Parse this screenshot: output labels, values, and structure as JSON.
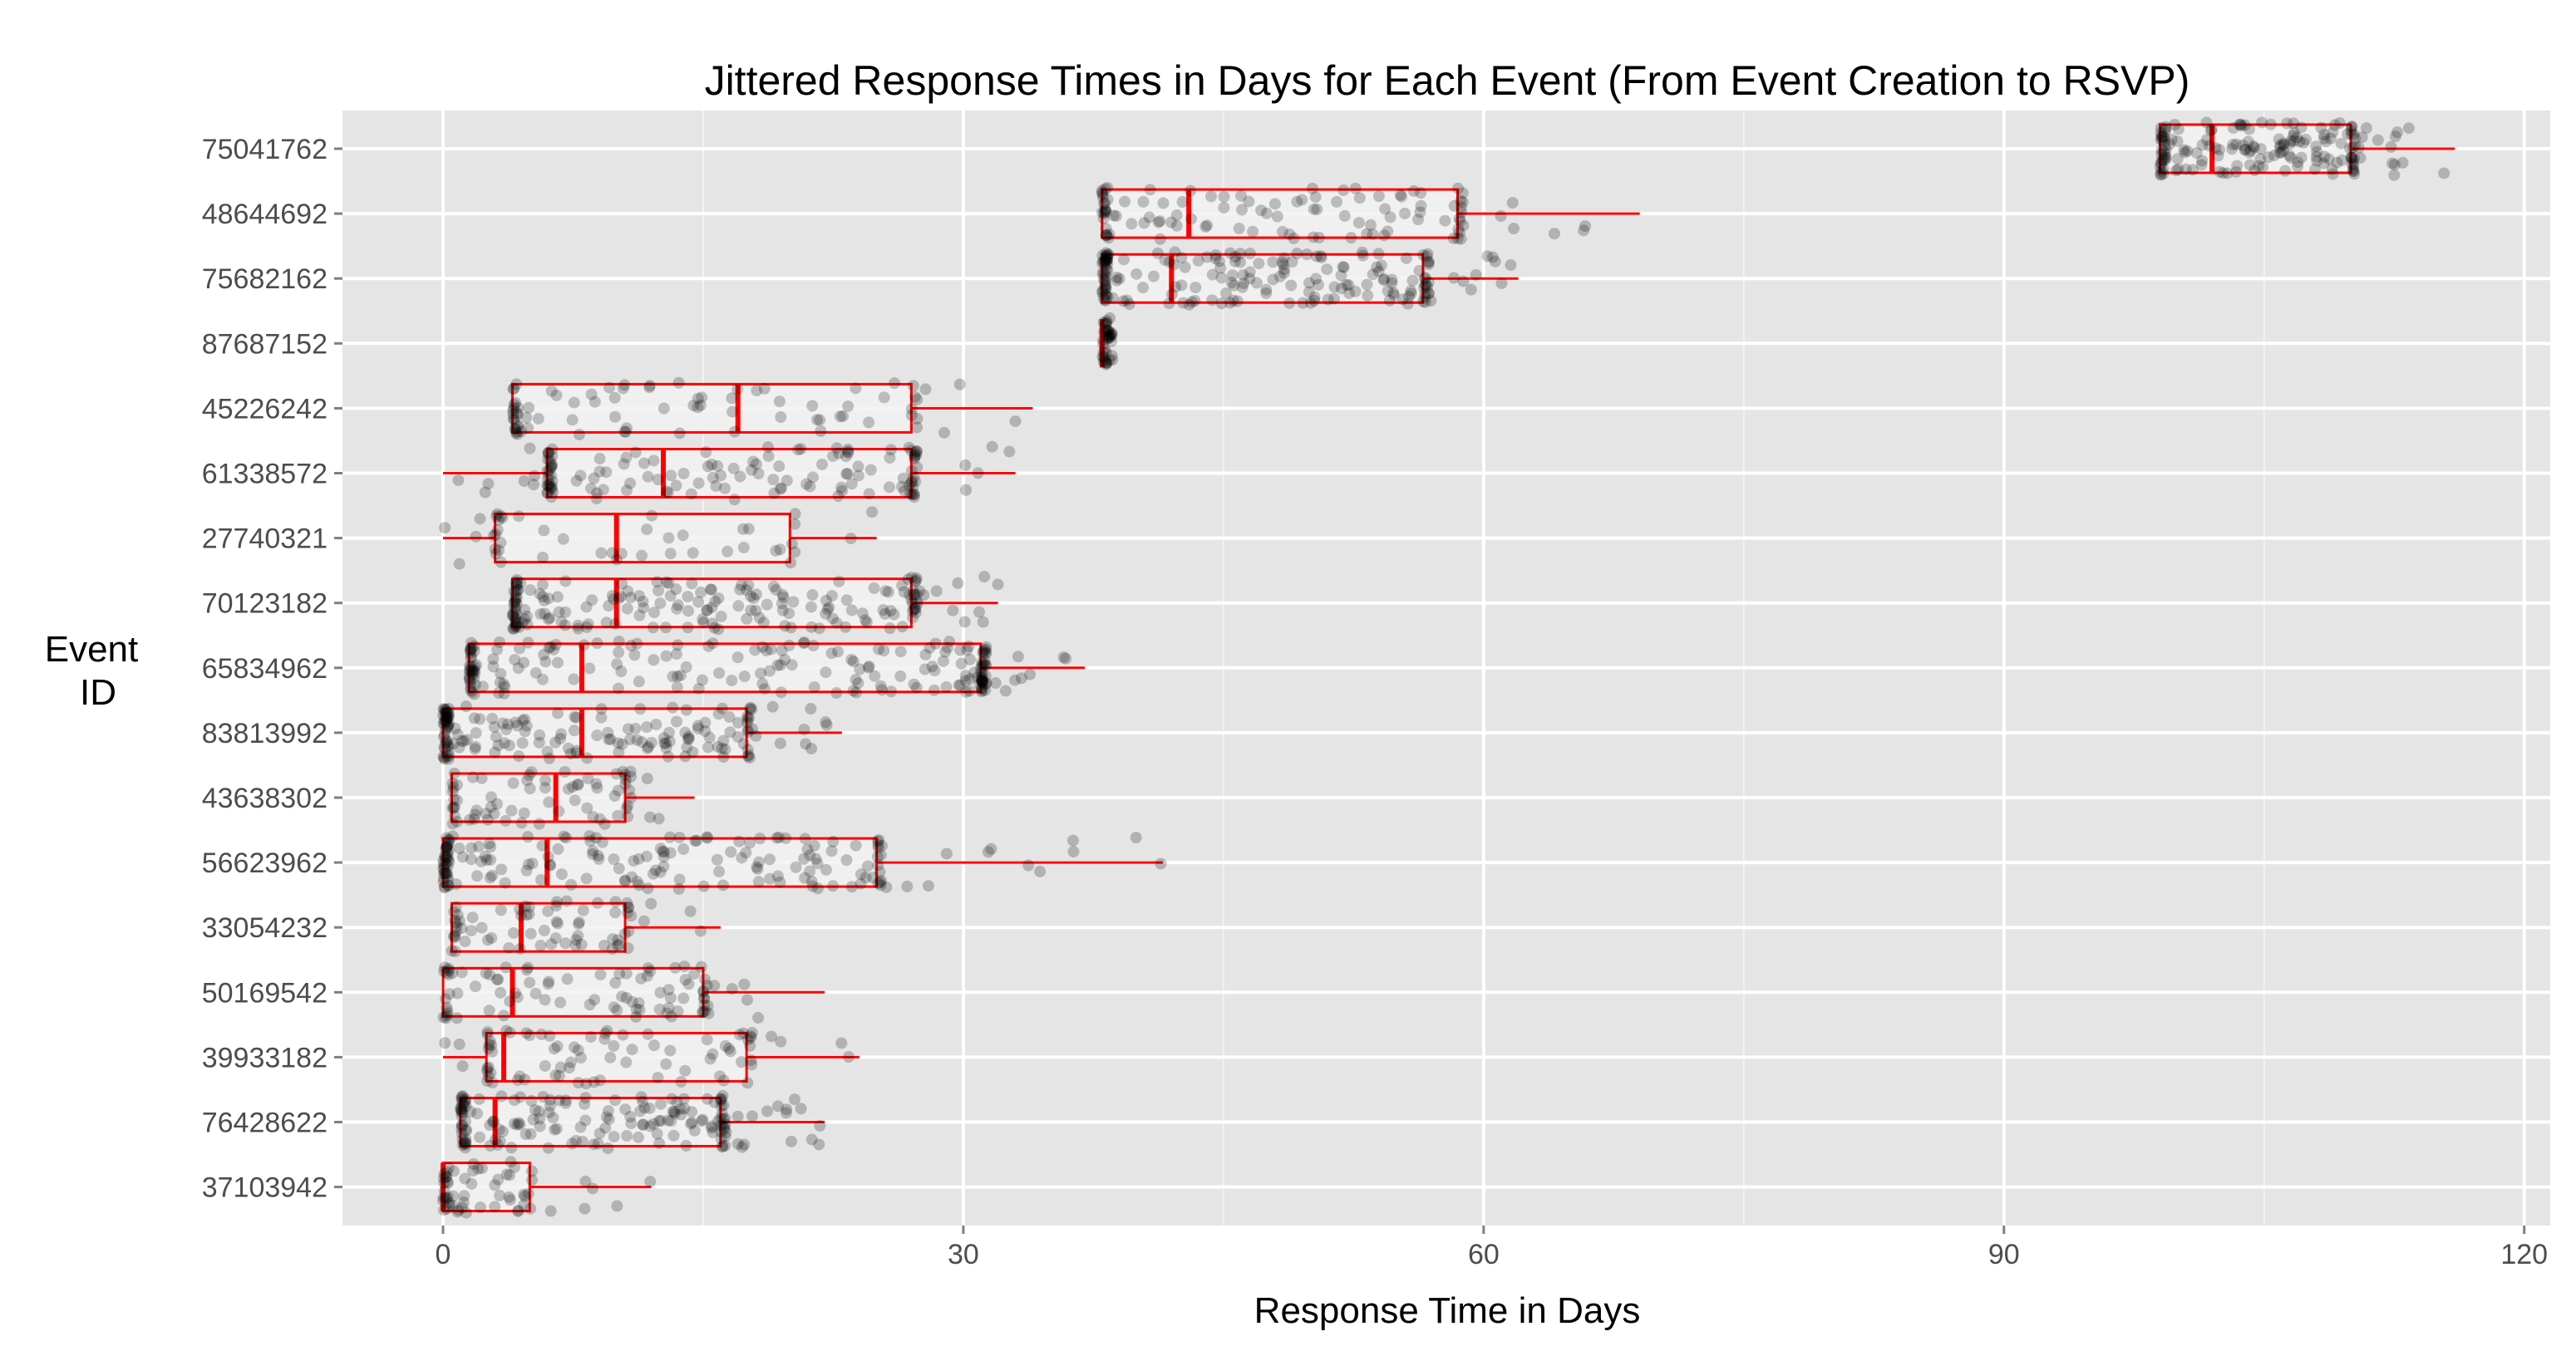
{
  "chart_data": {
    "type": "box-jitter",
    "title": "Jittered Response Times in Days for Each Event (From Event Creation to RSVP)",
    "xlabel": "Response Time in Days",
    "ylabel": [
      "Event",
      "ID"
    ],
    "xlim": [
      -5.8,
      121.5
    ],
    "xticks": [
      0,
      30,
      60,
      90,
      120
    ],
    "xtick_labels": [
      "0",
      "30",
      "60",
      "90",
      "120"
    ],
    "grid": true,
    "colors": {
      "panel": "#e5e5e5",
      "grid_major": "#ffffff",
      "grid_minor": "#f2f2f2",
      "box_stroke": "#ff0000",
      "box_fill": "#f2f2f2",
      "point": "#000000"
    },
    "events": [
      {
        "id": "75041762",
        "whisker_low": 99,
        "q1": 99,
        "median": 102,
        "q3": 110,
        "whisker_high": 116,
        "n": 170
      },
      {
        "id": "48644692",
        "whisker_low": 38,
        "q1": 38,
        "median": 43,
        "q3": 58.5,
        "whisker_high": 69,
        "n": 110
      },
      {
        "id": "75682162",
        "whisker_low": 38,
        "q1": 38,
        "median": 42,
        "q3": 56.5,
        "whisker_high": 62,
        "n": 190
      },
      {
        "id": "87687152",
        "whisker_low": 38,
        "q1": 38,
        "median": 38,
        "q3": 38,
        "whisker_high": 38,
        "n": 40
      },
      {
        "id": "45226242",
        "whisker_low": 4,
        "q1": 4,
        "median": 17,
        "q3": 27,
        "whisker_high": 34,
        "n": 80
      },
      {
        "id": "61338572",
        "whisker_low": 0,
        "q1": 6,
        "median": 12.7,
        "q3": 27,
        "whisker_high": 33,
        "n": 140
      },
      {
        "id": "27740321",
        "whisker_low": 0,
        "q1": 3,
        "median": 10,
        "q3": 20,
        "whisker_high": 25,
        "n": 45
      },
      {
        "id": "70123182",
        "whisker_low": 4,
        "q1": 4,
        "median": 10,
        "q3": 27,
        "whisker_high": 32,
        "n": 190
      },
      {
        "id": "65834962",
        "whisker_low": 1.5,
        "q1": 1.5,
        "median": 8,
        "q3": 31,
        "whisker_high": 37,
        "n": 200
      },
      {
        "id": "83813992",
        "whisker_low": 0,
        "q1": 0,
        "median": 8,
        "q3": 17.5,
        "whisker_high": 23,
        "n": 170
      },
      {
        "id": "43638302",
        "whisker_low": 0.5,
        "q1": 0.5,
        "median": 6.5,
        "q3": 10.5,
        "whisker_high": 14.5,
        "n": 70
      },
      {
        "id": "56623962",
        "whisker_low": 0,
        "q1": 0,
        "median": 6,
        "q3": 25,
        "whisker_high": 41.5,
        "n": 180
      },
      {
        "id": "33054232",
        "whisker_low": 0.5,
        "q1": 0.5,
        "median": 4.5,
        "q3": 10.5,
        "whisker_high": 16,
        "n": 70
      },
      {
        "id": "50169542",
        "whisker_low": 0,
        "q1": 0,
        "median": 4,
        "q3": 15,
        "whisker_high": 22,
        "n": 90
      },
      {
        "id": "39933182",
        "whisker_low": 0,
        "q1": 2.5,
        "median": 3.5,
        "q3": 17.5,
        "whisker_high": 24,
        "n": 80
      },
      {
        "id": "76428622",
        "whisker_low": 1,
        "q1": 1,
        "median": 3,
        "q3": 16,
        "whisker_high": 22,
        "n": 170
      },
      {
        "id": "37103942",
        "whisker_low": 0,
        "q1": 0,
        "median": 0,
        "q3": 5,
        "whisker_high": 12,
        "n": 60
      }
    ]
  }
}
